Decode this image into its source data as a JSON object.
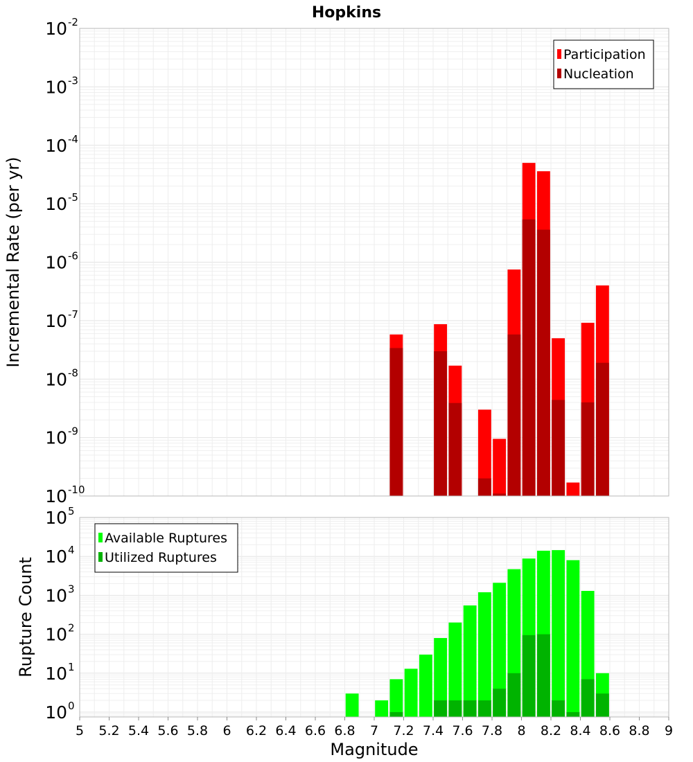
{
  "chart_data": [
    {
      "type": "bar",
      "panel": "top",
      "title": "Hopkins",
      "xlabel": "Magnitude",
      "ylabel": "Incremental Rate (per yr)",
      "ylim": [
        1e-10,
        0.01
      ],
      "yscale": "log",
      "xlim": [
        5,
        9
      ],
      "grid": true,
      "legend_position": "top-right",
      "y_tick_labels": [
        {
          "base": "10",
          "exp": "-10"
        },
        {
          "base": "10",
          "exp": "-9"
        },
        {
          "base": "10",
          "exp": "-8"
        },
        {
          "base": "10",
          "exp": "-7"
        },
        {
          "base": "10",
          "exp": "-6"
        },
        {
          "base": "10",
          "exp": "-5"
        },
        {
          "base": "10",
          "exp": "-4"
        },
        {
          "base": "10",
          "exp": "-3"
        },
        {
          "base": "10",
          "exp": "-2"
        }
      ],
      "x": [
        7.15,
        7.45,
        7.55,
        7.75,
        7.85,
        7.95,
        8.05,
        8.15,
        8.25,
        8.35,
        8.45,
        8.55
      ],
      "series": [
        {
          "name": "Participation",
          "color": "#ff0000",
          "values": [
            5.8e-08,
            8.7e-08,
            1.7e-08,
            3e-09,
            9.5e-10,
            7.5e-07,
            5e-05,
            3.6e-05,
            5e-08,
            1.7e-10,
            9.2e-08,
            4e-07
          ]
        },
        {
          "name": "Nucleation",
          "color": "#b30000",
          "values": [
            3.4e-08,
            3e-08,
            3.9e-09,
            2e-10,
            1.1e-10,
            5.8e-08,
            5.4e-06,
            3.6e-06,
            4.4e-09,
            null,
            4e-09,
            1.9e-08
          ]
        }
      ]
    },
    {
      "type": "bar",
      "panel": "bottom",
      "xlabel": "Magnitude",
      "ylabel": "Rupture Count",
      "ylim": [
        0.75,
        100000.0
      ],
      "yscale": "log",
      "xlim": [
        5,
        9
      ],
      "grid": true,
      "legend_position": "top-left",
      "y_tick_labels": [
        {
          "base": "10",
          "exp": "0"
        },
        {
          "base": "10",
          "exp": "1"
        },
        {
          "base": "10",
          "exp": "2"
        },
        {
          "base": "10",
          "exp": "3"
        },
        {
          "base": "10",
          "exp": "4"
        },
        {
          "base": "10",
          "exp": "5"
        }
      ],
      "x_tick_labels": [
        "5",
        "5.2",
        "5.4",
        "5.6",
        "5.8",
        "6",
        "6.2",
        "6.4",
        "6.6",
        "6.8",
        "7",
        "7.2",
        "7.4",
        "7.6",
        "7.8",
        "8",
        "8.2",
        "8.4",
        "8.6",
        "8.8",
        "9"
      ],
      "x_ticks": [
        5,
        5.2,
        5.4,
        5.6,
        5.8,
        6,
        6.2,
        6.4,
        6.6,
        6.8,
        7,
        7.2,
        7.4,
        7.6,
        7.8,
        8,
        8.2,
        8.4,
        8.6,
        8.8,
        9
      ],
      "x": [
        6.85,
        7.05,
        7.15,
        7.25,
        7.35,
        7.45,
        7.55,
        7.65,
        7.75,
        7.85,
        7.95,
        8.05,
        8.15,
        8.25,
        8.35,
        8.45,
        8.55
      ],
      "series": [
        {
          "name": "Available Ruptures",
          "color": "#00ff00",
          "values": [
            3,
            2,
            7,
            13,
            30,
            80,
            200,
            550,
            1200,
            2100,
            4700,
            8800,
            14000,
            14500,
            8000,
            1300,
            10
          ]
        },
        {
          "name": "Utilized Ruptures",
          "color": "#00b300",
          "values": [
            null,
            null,
            1,
            null,
            null,
            2,
            2,
            2,
            2,
            4,
            10,
            95,
            100,
            2,
            1,
            7,
            3
          ]
        }
      ]
    }
  ]
}
